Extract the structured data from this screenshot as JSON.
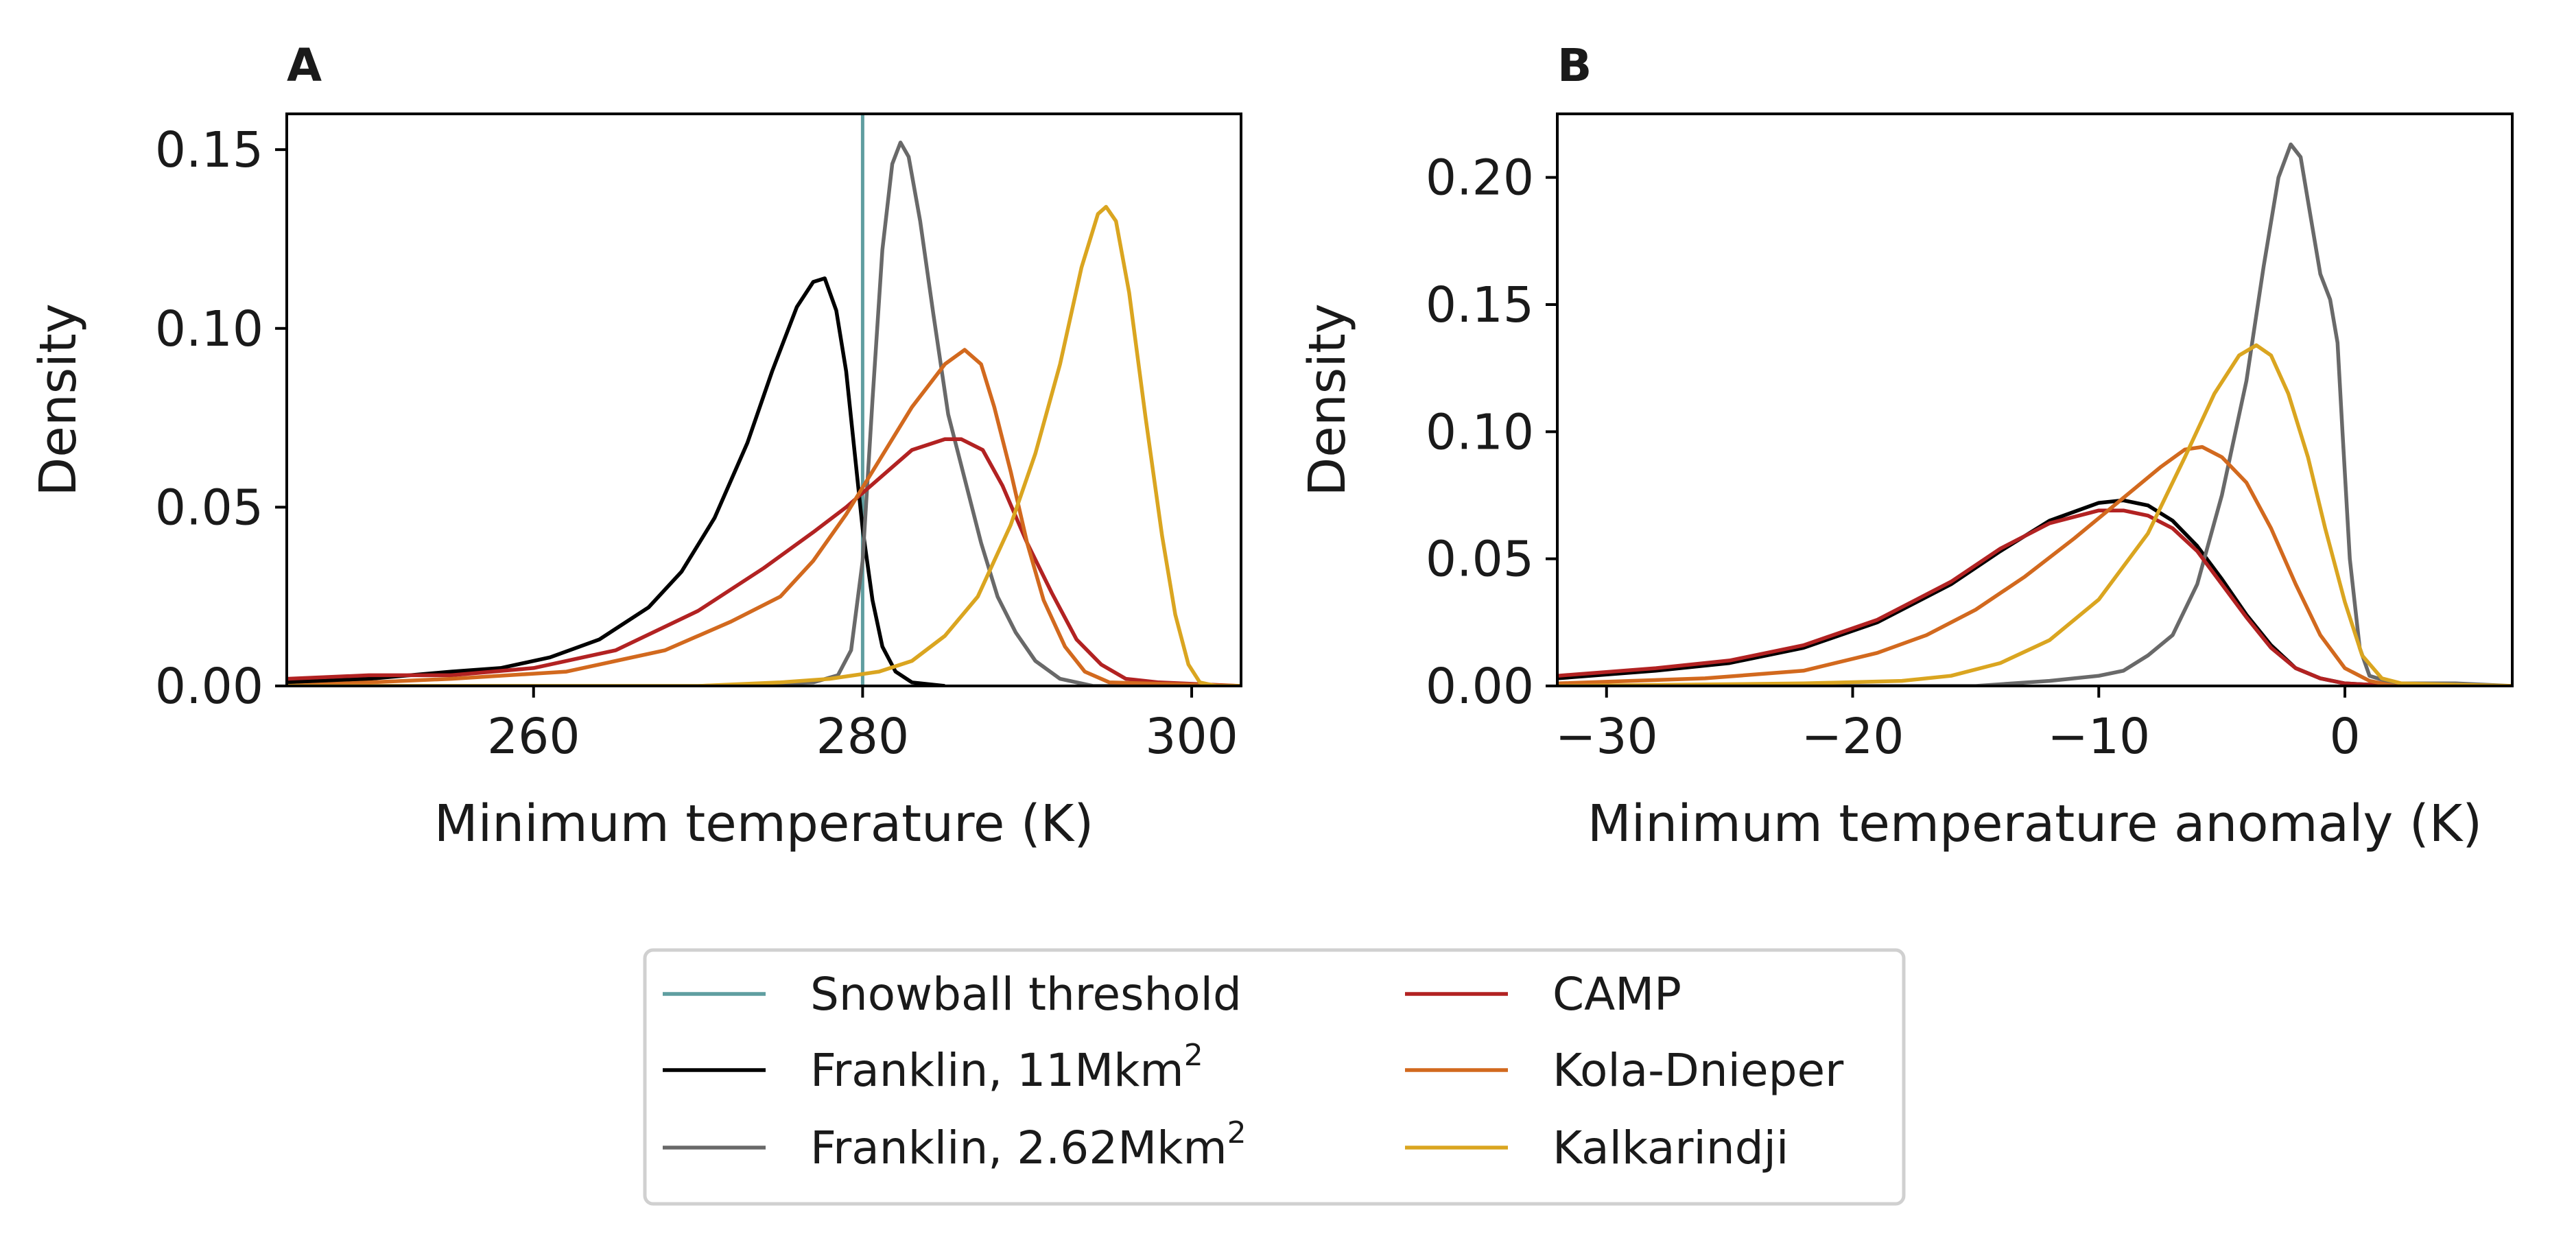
{
  "chart_data": [
    {
      "type": "line",
      "panel": "A",
      "xlabel": "Minimum temperature (K)",
      "ylabel": "Density",
      "xlim": [
        245,
        303
      ],
      "ylim": [
        0,
        0.16
      ],
      "xticks": [
        260,
        280,
        300
      ],
      "xtick_labels": [
        "260",
        "280",
        "300"
      ],
      "yticks": [
        0.0,
        0.05,
        0.1,
        0.15
      ],
      "ytick_labels": [
        "0.00",
        "0.05",
        "0.10",
        "0.15"
      ],
      "grid": false,
      "reference_lines": [
        {
          "series_key": "snowball",
          "orientation": "vertical",
          "x": 280,
          "color": "#5f9ea0"
        }
      ],
      "series": [
        {
          "key": "franklin11",
          "color": "#000000",
          "points": [
            [
              245,
              0.001
            ],
            [
              250,
              0.002
            ],
            [
              255,
              0.004
            ],
            [
              258,
              0.005
            ],
            [
              261,
              0.008
            ],
            [
              264,
              0.013
            ],
            [
              267,
              0.022
            ],
            [
              269,
              0.032
            ],
            [
              271,
              0.047
            ],
            [
              273,
              0.068
            ],
            [
              274.5,
              0.088
            ],
            [
              276,
              0.106
            ],
            [
              277,
              0.113
            ],
            [
              277.7,
              0.114
            ],
            [
              278.4,
              0.105
            ],
            [
              279,
              0.088
            ],
            [
              279.5,
              0.066
            ],
            [
              280,
              0.044
            ],
            [
              280.6,
              0.024
            ],
            [
              281.2,
              0.011
            ],
            [
              282,
              0.004
            ],
            [
              283,
              0.001
            ],
            [
              285,
              0
            ]
          ]
        },
        {
          "key": "franklin262",
          "color": "#696969",
          "points": [
            [
              245,
              0
            ],
            [
              270,
              0
            ],
            [
              277,
              0.001
            ],
            [
              278.5,
              0.003
            ],
            [
              279.3,
              0.01
            ],
            [
              280,
              0.035
            ],
            [
              280.6,
              0.08
            ],
            [
              281.2,
              0.122
            ],
            [
              281.8,
              0.146
            ],
            [
              282.3,
              0.152
            ],
            [
              282.8,
              0.148
            ],
            [
              283.5,
              0.13
            ],
            [
              284.3,
              0.104
            ],
            [
              285.2,
              0.076
            ],
            [
              286.2,
              0.058
            ],
            [
              287.2,
              0.04
            ],
            [
              288.2,
              0.025
            ],
            [
              289.3,
              0.015
            ],
            [
              290.5,
              0.007
            ],
            [
              292,
              0.002
            ],
            [
              294,
              0
            ],
            [
              303,
              0
            ]
          ]
        },
        {
          "key": "camp",
          "color": "#b22222",
          "points": [
            [
              245,
              0.002
            ],
            [
              250,
              0.003
            ],
            [
              255,
              0.003
            ],
            [
              260,
              0.005
            ],
            [
              265,
              0.01
            ],
            [
              270,
              0.021
            ],
            [
              274,
              0.033
            ],
            [
              277,
              0.043
            ],
            [
              279,
              0.05
            ],
            [
              281,
              0.058
            ],
            [
              283,
              0.066
            ],
            [
              285,
              0.069
            ],
            [
              286,
              0.069
            ],
            [
              287.3,
              0.066
            ],
            [
              288.5,
              0.056
            ],
            [
              290,
              0.04
            ],
            [
              291.5,
              0.026
            ],
            [
              293,
              0.013
            ],
            [
              294.5,
              0.006
            ],
            [
              296,
              0.002
            ],
            [
              298,
              0.001
            ],
            [
              303,
              0
            ]
          ]
        },
        {
          "key": "kola",
          "color": "#d2691e",
          "points": [
            [
              245,
              0
            ],
            [
              255,
              0.002
            ],
            [
              262,
              0.004
            ],
            [
              268,
              0.01
            ],
            [
              272,
              0.018
            ],
            [
              275,
              0.025
            ],
            [
              277,
              0.035
            ],
            [
              279,
              0.048
            ],
            [
              281,
              0.063
            ],
            [
              283,
              0.078
            ],
            [
              285,
              0.09
            ],
            [
              286.2,
              0.094
            ],
            [
              287.2,
              0.09
            ],
            [
              288,
              0.078
            ],
            [
              289,
              0.06
            ],
            [
              290,
              0.04
            ],
            [
              291,
              0.024
            ],
            [
              292.3,
              0.011
            ],
            [
              293.5,
              0.004
            ],
            [
              295,
              0.001
            ],
            [
              303,
              0
            ]
          ]
        },
        {
          "key": "kalkarindji",
          "color": "#daa520",
          "points": [
            [
              245,
              0
            ],
            [
              270,
              0
            ],
            [
              275,
              0.001
            ],
            [
              278,
              0.002
            ],
            [
              281,
              0.004
            ],
            [
              283,
              0.007
            ],
            [
              285,
              0.014
            ],
            [
              287,
              0.025
            ],
            [
              289,
              0.045
            ],
            [
              290.5,
              0.065
            ],
            [
              292,
              0.09
            ],
            [
              293.3,
              0.117
            ],
            [
              294.3,
              0.132
            ],
            [
              294.8,
              0.134
            ],
            [
              295.4,
              0.13
            ],
            [
              296.2,
              0.11
            ],
            [
              297.2,
              0.075
            ],
            [
              298.2,
              0.042
            ],
            [
              299,
              0.02
            ],
            [
              299.8,
              0.006
            ],
            [
              300.5,
              0.001
            ],
            [
              301.5,
              0
            ],
            [
              303,
              0
            ]
          ]
        }
      ]
    },
    {
      "type": "line",
      "panel": "B",
      "xlabel": "Minimum temperature anomaly (K)",
      "ylabel": "Density",
      "xlim": [
        -32,
        6.8
      ],
      "ylim": [
        0,
        0.225
      ],
      "xticks": [
        -30,
        -20,
        -10,
        0
      ],
      "xtick_labels": [
        "−30",
        "−20",
        "−10",
        "0"
      ],
      "yticks": [
        0.0,
        0.05,
        0.1,
        0.15,
        0.2
      ],
      "ytick_labels": [
        "0.00",
        "0.05",
        "0.10",
        "0.15",
        "0.20"
      ],
      "grid": false,
      "series": [
        {
          "key": "franklin11",
          "color": "#000000",
          "points": [
            [
              -32,
              0.003
            ],
            [
              -28,
              0.006
            ],
            [
              -25,
              0.009
            ],
            [
              -22,
              0.015
            ],
            [
              -19,
              0.025
            ],
            [
              -16,
              0.04
            ],
            [
              -14,
              0.053
            ],
            [
              -12,
              0.065
            ],
            [
              -10,
              0.072
            ],
            [
              -9,
              0.073
            ],
            [
              -8,
              0.071
            ],
            [
              -7,
              0.065
            ],
            [
              -6,
              0.055
            ],
            [
              -5,
              0.042
            ],
            [
              -4,
              0.028
            ],
            [
              -3,
              0.016
            ],
            [
              -2,
              0.007
            ],
            [
              -1,
              0.003
            ],
            [
              0,
              0.001
            ],
            [
              2,
              0
            ],
            [
              6.8,
              0
            ]
          ]
        },
        {
          "key": "franklin262",
          "color": "#696969",
          "points": [
            [
              -32,
              0
            ],
            [
              -15,
              0
            ],
            [
              -12,
              0.002
            ],
            [
              -10,
              0.004
            ],
            [
              -9,
              0.006
            ],
            [
              -8,
              0.012
            ],
            [
              -7,
              0.02
            ],
            [
              -6,
              0.04
            ],
            [
              -5,
              0.075
            ],
            [
              -4,
              0.12
            ],
            [
              -3.3,
              0.165
            ],
            [
              -2.7,
              0.2
            ],
            [
              -2.2,
              0.213
            ],
            [
              -1.8,
              0.208
            ],
            [
              -1.4,
              0.185
            ],
            [
              -1,
              0.162
            ],
            [
              -0.6,
              0.152
            ],
            [
              -0.3,
              0.135
            ],
            [
              -0.1,
              0.1
            ],
            [
              0.2,
              0.05
            ],
            [
              0.6,
              0.015
            ],
            [
              1,
              0.004
            ],
            [
              2,
              0.001
            ],
            [
              4.5,
              0.001
            ],
            [
              6.8,
              0
            ]
          ]
        },
        {
          "key": "camp",
          "color": "#b22222",
          "points": [
            [
              -32,
              0.004
            ],
            [
              -28,
              0.007
            ],
            [
              -25,
              0.01
            ],
            [
              -22,
              0.016
            ],
            [
              -19,
              0.026
            ],
            [
              -16,
              0.041
            ],
            [
              -14,
              0.054
            ],
            [
              -12,
              0.064
            ],
            [
              -10,
              0.069
            ],
            [
              -9,
              0.069
            ],
            [
              -8,
              0.067
            ],
            [
              -7,
              0.062
            ],
            [
              -6,
              0.053
            ],
            [
              -5,
              0.04
            ],
            [
              -4,
              0.027
            ],
            [
              -3,
              0.015
            ],
            [
              -2,
              0.007
            ],
            [
              -1,
              0.003
            ],
            [
              0,
              0.001
            ],
            [
              2,
              0
            ],
            [
              6.8,
              0
            ]
          ]
        },
        {
          "key": "kola",
          "color": "#d2691e",
          "points": [
            [
              -32,
              0.001
            ],
            [
              -26,
              0.003
            ],
            [
              -22,
              0.006
            ],
            [
              -19,
              0.013
            ],
            [
              -17,
              0.02
            ],
            [
              -15,
              0.03
            ],
            [
              -13,
              0.043
            ],
            [
              -11,
              0.058
            ],
            [
              -9,
              0.074
            ],
            [
              -7.5,
              0.086
            ],
            [
              -6.5,
              0.093
            ],
            [
              -5.8,
              0.094
            ],
            [
              -5,
              0.09
            ],
            [
              -4,
              0.08
            ],
            [
              -3,
              0.062
            ],
            [
              -2,
              0.04
            ],
            [
              -1,
              0.02
            ],
            [
              0,
              0.007
            ],
            [
              1,
              0.002
            ],
            [
              2,
              0
            ],
            [
              6.8,
              0
            ]
          ]
        },
        {
          "key": "kalkarindji",
          "color": "#daa520",
          "points": [
            [
              -32,
              0
            ],
            [
              -22,
              0.001
            ],
            [
              -18,
              0.002
            ],
            [
              -16,
              0.004
            ],
            [
              -14,
              0.009
            ],
            [
              -12,
              0.018
            ],
            [
              -10,
              0.034
            ],
            [
              -8,
              0.06
            ],
            [
              -6.5,
              0.09
            ],
            [
              -5.3,
              0.115
            ],
            [
              -4.3,
              0.13
            ],
            [
              -3.6,
              0.134
            ],
            [
              -3,
              0.13
            ],
            [
              -2.3,
              0.115
            ],
            [
              -1.5,
              0.09
            ],
            [
              -0.8,
              0.062
            ],
            [
              0,
              0.033
            ],
            [
              0.7,
              0.012
            ],
            [
              1.5,
              0.003
            ],
            [
              2.3,
              0.001
            ],
            [
              6.8,
              0
            ]
          ]
        }
      ]
    }
  ],
  "legend": {
    "placement": "bottom-center",
    "columns": 2,
    "items": [
      {
        "key": "snowball",
        "label": "Snowball threshold",
        "color": "#5f9ea0",
        "superscript": ""
      },
      {
        "key": "franklin11",
        "label": "Franklin, 11Mkm",
        "color": "#000000",
        "superscript": "2"
      },
      {
        "key": "franklin262",
        "label": "Franklin, 2.62Mkm",
        "color": "#696969",
        "superscript": "2"
      },
      {
        "key": "camp",
        "label": "CAMP",
        "color": "#b22222",
        "superscript": ""
      },
      {
        "key": "kola",
        "label": "Kola-Dnieper",
        "color": "#d2691e",
        "superscript": ""
      },
      {
        "key": "kalkarindji",
        "label": "Kalkarindji",
        "color": "#daa520",
        "superscript": ""
      }
    ]
  }
}
